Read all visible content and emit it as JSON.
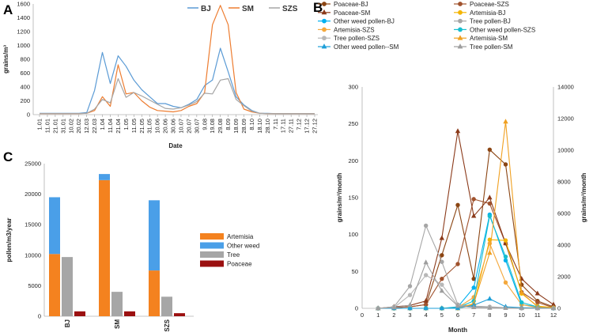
{
  "chart_data": [
    {
      "panel": "A",
      "type": "line",
      "xlabel": "Date",
      "ylabel": "grains/m³",
      "ylim": [
        0,
        1600
      ],
      "yticks": [
        "0",
        "200",
        "400",
        "600",
        "800",
        "1000",
        "1200",
        "1400",
        "1600"
      ],
      "categories": [
        "1.01",
        "11.01",
        "21.01",
        "31.01",
        "10.02",
        "20.02",
        "12.03",
        "22.03",
        "1.04",
        "11.04",
        "21.04",
        "1.05",
        "11.05",
        "21.05",
        "31.05",
        "10.06",
        "20.06",
        "30.06",
        "10.07",
        "20.07",
        "30.07",
        "9.08",
        "19.08",
        "29.08",
        "8.09",
        "18.09",
        "28.09",
        "8.10",
        "18.10",
        "28.10",
        "7.11",
        "17.11",
        "27.11",
        "7.12",
        "17.12",
        "27.12"
      ],
      "legend": [
        "BJ",
        "SM",
        "SZS"
      ],
      "colors": {
        "BJ": "#5b9bd5",
        "SM": "#ed7d31",
        "SZS": "#a5a5a5"
      },
      "series": [
        {
          "name": "BJ",
          "values": [
            20,
            20,
            20,
            20,
            20,
            20,
            30,
            350,
            900,
            450,
            850,
            700,
            500,
            360,
            260,
            160,
            160,
            120,
            100,
            150,
            220,
            420,
            500,
            960,
            620,
            260,
            140,
            60,
            20,
            20,
            15,
            15,
            15,
            15,
            15,
            15
          ]
        },
        {
          "name": "SM",
          "values": [
            15,
            15,
            15,
            15,
            15,
            15,
            20,
            60,
            260,
            120,
            720,
            300,
            320,
            200,
            110,
            60,
            50,
            40,
            60,
            120,
            160,
            320,
            1300,
            1580,
            1300,
            320,
            80,
            40,
            20,
            15,
            15,
            15,
            15,
            15,
            15,
            15
          ]
        },
        {
          "name": "SZS",
          "values": [
            15,
            15,
            15,
            15,
            15,
            15,
            20,
            80,
            220,
            170,
            520,
            250,
            320,
            270,
            210,
            150,
            90,
            80,
            100,
            140,
            190,
            310,
            300,
            500,
            520,
            220,
            130,
            50,
            20,
            15,
            15,
            15,
            15,
            15,
            15,
            15
          ]
        }
      ]
    },
    {
      "panel": "B",
      "type": "line",
      "xlabel": "Month",
      "ylabel": "grains/m³/month",
      "ylabel_right": "grains/m³/month",
      "ylim": [
        0,
        300
      ],
      "ylim_right": [
        0,
        14000
      ],
      "yticks": [
        "0",
        "50",
        "100",
        "150",
        "200",
        "250",
        "300"
      ],
      "yticks_right": [
        "0",
        "2000",
        "4000",
        "6000",
        "8000",
        "10000",
        "12000",
        "14000"
      ],
      "x": [
        0,
        1,
        2,
        3,
        4,
        5,
        6,
        7,
        8,
        9,
        10,
        11,
        12
      ],
      "series": [
        {
          "name": "Poaceae-BJ",
          "color": "#8b4513",
          "marker": "circle",
          "axis": "left",
          "values": [
            null,
            0,
            1,
            2,
            5,
            72,
            140,
            40,
            215,
            195,
            32,
            10,
            2
          ]
        },
        {
          "name": "Poaceae-SZS",
          "color": "#a0522d",
          "marker": "circle",
          "axis": "left",
          "values": [
            null,
            0,
            1,
            2,
            5,
            40,
            60,
            148,
            142,
            88,
            22,
            8,
            1
          ]
        },
        {
          "name": "Poaceae-SM",
          "color": "#8b3a1a",
          "marker": "triangle",
          "axis": "left",
          "values": [
            null,
            0,
            2,
            4,
            10,
            95,
            240,
            125,
            150,
            88,
            40,
            20,
            5
          ]
        },
        {
          "name": "Artemisia-BJ",
          "color": "#f4b400",
          "marker": "circle",
          "axis": "left",
          "values": [
            null,
            0,
            0,
            0,
            0,
            0,
            0,
            5,
            93,
            92,
            20,
            3,
            1
          ]
        },
        {
          "name": "Other weed pollen-BJ",
          "color": "#00b0f0",
          "marker": "circle",
          "axis": "left",
          "values": [
            null,
            0,
            0,
            0,
            0,
            0,
            2,
            28,
            127,
            65,
            5,
            2,
            0
          ]
        },
        {
          "name": "Tree pollen-BJ",
          "color": "#a6a6a6",
          "marker": "circle",
          "axis": "left",
          "values": [
            null,
            0,
            2,
            30,
            112,
            63,
            5,
            3,
            2,
            1,
            0,
            0,
            0
          ]
        },
        {
          "name": "Artemisia-SZS",
          "color": "#f4a83c",
          "marker": "circle",
          "axis": "left",
          "values": [
            null,
            0,
            0,
            0,
            0,
            0,
            1,
            15,
            88,
            35,
            5,
            1,
            0
          ]
        },
        {
          "name": "Other weed pollen-SZS",
          "color": "#17becf",
          "marker": "circle",
          "axis": "left",
          "values": [
            null,
            0,
            0,
            0,
            0,
            0,
            1,
            10,
            125,
            70,
            8,
            2,
            0
          ]
        },
        {
          "name": "Tree pollen-SZS",
          "color": "#b8b8b8",
          "marker": "circle",
          "axis": "left",
          "values": [
            null,
            0,
            1,
            18,
            45,
            32,
            4,
            2,
            1,
            1,
            0,
            0,
            0
          ]
        },
        {
          "name": "Artemisia-SM",
          "color": "#f0a020",
          "marker": "triangle",
          "axis": "right",
          "values": [
            null,
            0,
            0,
            0,
            0,
            0,
            0,
            300,
            3500,
            11800,
            1000,
            100,
            20
          ]
        },
        {
          "name": "Other weed pollen--SM",
          "color": "#1e9fd8",
          "marker": "triangle",
          "axis": "right",
          "values": [
            null,
            0,
            0,
            0,
            0,
            0,
            0,
            200,
            600,
            100,
            40,
            20,
            5
          ]
        },
        {
          "name": "Tree pollen-SM",
          "color": "#9e9e9e",
          "marker": "triangle",
          "axis": "right",
          "values": [
            null,
            0,
            50,
            200,
            2900,
            1100,
            150,
            60,
            20,
            10,
            5,
            0,
            0
          ]
        }
      ]
    },
    {
      "panel": "C",
      "type": "bar",
      "ylabel": "pollen/m3/year",
      "ylim": [
        0,
        25000
      ],
      "yticks": [
        "0",
        "5000",
        "10000",
        "15000",
        "20000",
        "25000"
      ],
      "categories": [
        "BJ",
        "SM",
        "SZS"
      ],
      "legend": [
        "Artemisia",
        "Other weed",
        "Tree",
        "Poaceae"
      ],
      "colors": {
        "Artemisia": "#f4821f",
        "Other weed": "#4a9fe8",
        "Tree": "#a6a6a6",
        "Poaceae": "#9b1010"
      },
      "series": [
        {
          "name": "Artemisia",
          "values": [
            10200,
            22300,
            7500
          ]
        },
        {
          "name": "Other weed",
          "values": [
            9300,
            1000,
            11500
          ]
        },
        {
          "name": "Tree",
          "values": [
            9700,
            4000,
            3200
          ]
        },
        {
          "name": "Poaceae",
          "values": [
            800,
            800,
            500
          ]
        }
      ]
    }
  ]
}
